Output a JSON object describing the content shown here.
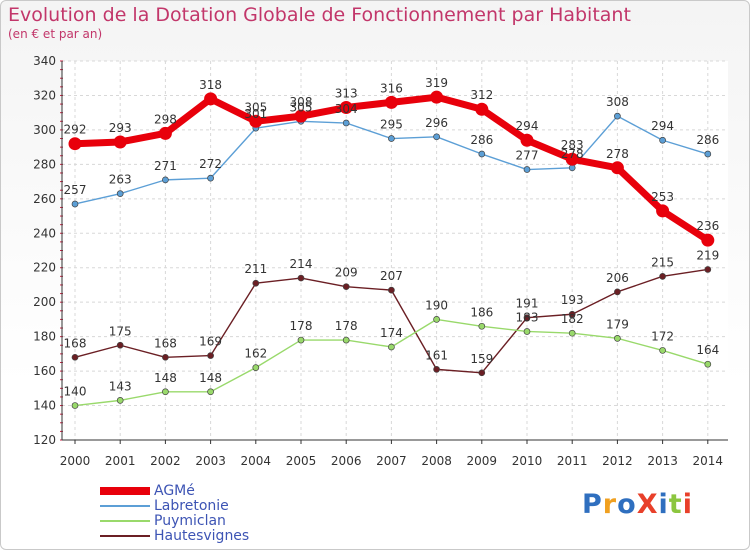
{
  "title": "Evolution de la Dotation Globale de Fonctionnement par Habitant",
  "subtitle": "(en € et par an)",
  "logo": "ProXiti",
  "chart_data": {
    "type": "line",
    "categories": [
      "2000",
      "2001",
      "2002",
      "2003",
      "2004",
      "2005",
      "2006",
      "2007",
      "2008",
      "2009",
      "2010",
      "2011",
      "2012",
      "2013",
      "2014"
    ],
    "ylim": [
      120,
      340
    ],
    "yticks": [
      120,
      140,
      160,
      180,
      200,
      220,
      240,
      260,
      280,
      300,
      320,
      340
    ],
    "grid": true,
    "legend_position": "bottom-left",
    "series": [
      {
        "name": "AGMé",
        "color": "#e8000b",
        "values": [
          292,
          293,
          298,
          318,
          305,
          308,
          313,
          316,
          319,
          312,
          294,
          283,
          278,
          253,
          236
        ]
      },
      {
        "name": "Labretonie",
        "color": "#5c9fd6",
        "values": [
          257,
          263,
          271,
          272,
          301,
          305,
          304,
          295,
          296,
          286,
          277,
          278,
          308,
          294,
          286
        ]
      },
      {
        "name": "Puymiclan",
        "color": "#99d96b",
        "values": [
          140,
          143,
          148,
          148,
          162,
          178,
          178,
          174,
          190,
          186,
          183,
          182,
          179,
          172,
          164
        ]
      },
      {
        "name": "Hautesvignes",
        "color": "#6b1f24",
        "values": [
          168,
          175,
          168,
          169,
          211,
          214,
          209,
          207,
          161,
          159,
          191,
          193,
          206,
          215,
          219
        ]
      }
    ]
  }
}
